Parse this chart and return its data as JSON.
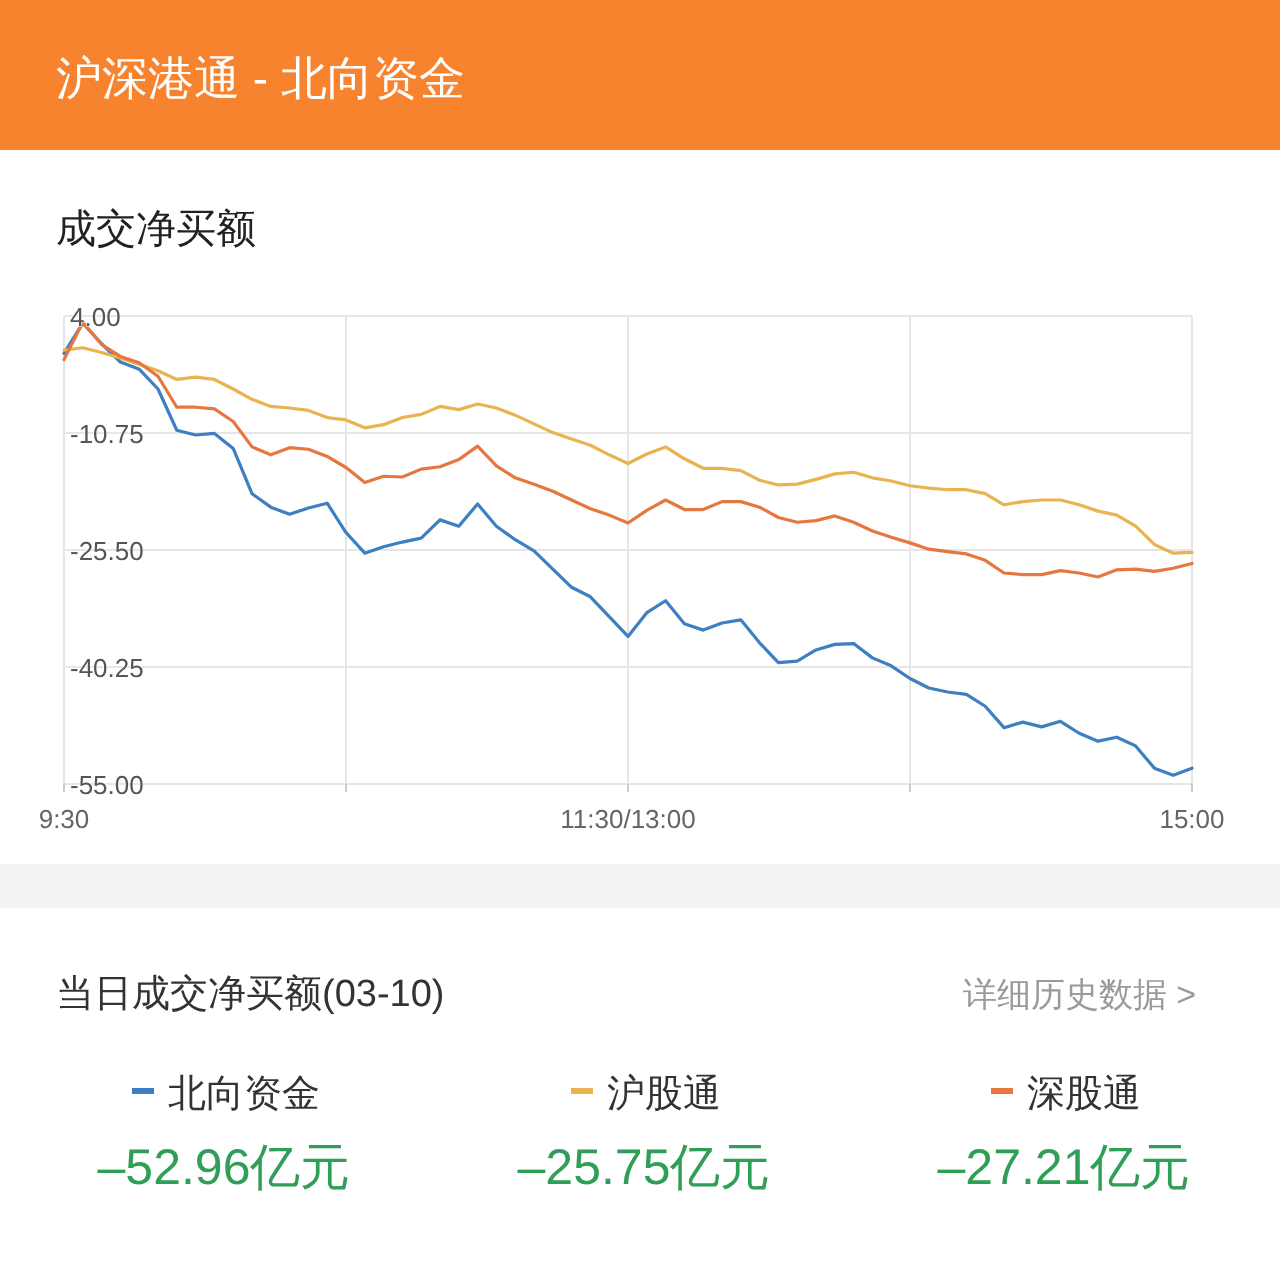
{
  "chart_data": {
    "type": "line",
    "title": "沪深港通 - 北向资金",
    "subtitle": "成交净买额",
    "categories": [
      "9:30",
      null,
      null,
      null,
      null,
      null,
      null,
      null,
      null,
      null,
      null,
      null,
      null,
      null,
      null,
      null,
      null,
      null,
      null,
      null,
      null,
      null,
      null,
      null,
      null,
      null,
      null,
      null,
      null,
      null,
      "11:30/13:00",
      null,
      null,
      null,
      null,
      null,
      null,
      null,
      null,
      null,
      null,
      null,
      null,
      null,
      null,
      null,
      null,
      null,
      null,
      null,
      null,
      null,
      null,
      null,
      null,
      null,
      null,
      null,
      null,
      null,
      "15:00"
    ],
    "ylim": [
      -55,
      4
    ],
    "yticks": [
      {
        "value": 4,
        "label": "4.00"
      },
      -10.75,
      {
        "value": -25.5,
        "label": "-25.50"
      },
      -40.25,
      {
        "value": -55,
        "label": "-55.00"
      }
    ],
    "grid": true,
    "legend": "bottom",
    "line_style": "solid",
    "series": [
      {
        "name": "北向资金",
        "color": "#3d7fc1",
        "values": [
          -0.7,
          3.1,
          0.5,
          -1.8,
          -2.7,
          -5.2,
          -10.4,
          -11.0,
          -10.8,
          -12.7,
          -18.4,
          -20.1,
          -21.0,
          -20.2,
          -19.6,
          -23.3,
          -25.9,
          -25.1,
          -24.5,
          -24.0,
          -21.7,
          -22.5,
          -19.7,
          -22.5,
          -24.2,
          -25.6,
          -27.9,
          -30.2,
          -31.4,
          -33.9,
          -36.4,
          -33.4,
          -31.9,
          -34.8,
          -35.6,
          -34.7,
          -34.3,
          -37.2,
          -39.7,
          -39.5,
          -38.1,
          -37.4,
          -37.3,
          -39.1,
          -40.1,
          -41.7,
          -42.9,
          -43.4,
          -43.7,
          -45.2,
          -47.9,
          -47.2,
          -47.8,
          -47.1,
          -48.6,
          -49.6,
          -49.1,
          -50.2,
          -53.0,
          -53.9,
          -53.0
        ]
      },
      {
        "name": "沪股通",
        "color": "#e9b350",
        "values": [
          -0.3,
          0.0,
          -0.6,
          -1.3,
          -2.1,
          -2.9,
          -4.0,
          -3.7,
          -4.0,
          -5.2,
          -6.5,
          -7.4,
          -7.6,
          -7.9,
          -8.8,
          -9.1,
          -10.1,
          -9.7,
          -8.8,
          -8.4,
          -7.4,
          -7.8,
          -7.1,
          -7.6,
          -8.5,
          -9.6,
          -10.7,
          -11.5,
          -12.3,
          -13.5,
          -14.6,
          -13.4,
          -12.5,
          -14.0,
          -15.2,
          -15.2,
          -15.5,
          -16.7,
          -17.3,
          -17.2,
          -16.6,
          -15.9,
          -15.7,
          -16.4,
          -16.8,
          -17.4,
          -17.7,
          -17.9,
          -17.9,
          -18.4,
          -19.8,
          -19.4,
          -19.2,
          -19.2,
          -19.8,
          -20.6,
          -21.1,
          -22.5,
          -24.8,
          -25.9,
          -25.8
        ]
      },
      {
        "name": "深股通",
        "color": "#e5773f",
        "values": [
          -1.5,
          3.2,
          0.4,
          -1.1,
          -1.9,
          -3.6,
          -7.5,
          -7.5,
          -7.7,
          -9.3,
          -12.5,
          -13.5,
          -12.6,
          -12.8,
          -13.7,
          -15.1,
          -17.0,
          -16.2,
          -16.3,
          -15.3,
          -15.0,
          -14.1,
          -12.4,
          -14.9,
          -16.4,
          -17.2,
          -18.1,
          -19.2,
          -20.3,
          -21.1,
          -22.1,
          -20.5,
          -19.2,
          -20.4,
          -20.4,
          -19.4,
          -19.4,
          -20.1,
          -21.4,
          -22.0,
          -21.8,
          -21.2,
          -22.0,
          -23.1,
          -23.9,
          -24.6,
          -25.4,
          -25.7,
          -26.0,
          -26.8,
          -28.4,
          -28.6,
          -28.6,
          -28.1,
          -28.4,
          -28.9,
          -28.0,
          -27.9,
          -28.2,
          -27.8,
          -27.2
        ]
      }
    ],
    "annotations": [
      "当日成交净买额(03-10)",
      "详细历史数据 >",
      "–52.96亿元",
      "–25.75亿元",
      "–27.21亿元"
    ]
  }
}
